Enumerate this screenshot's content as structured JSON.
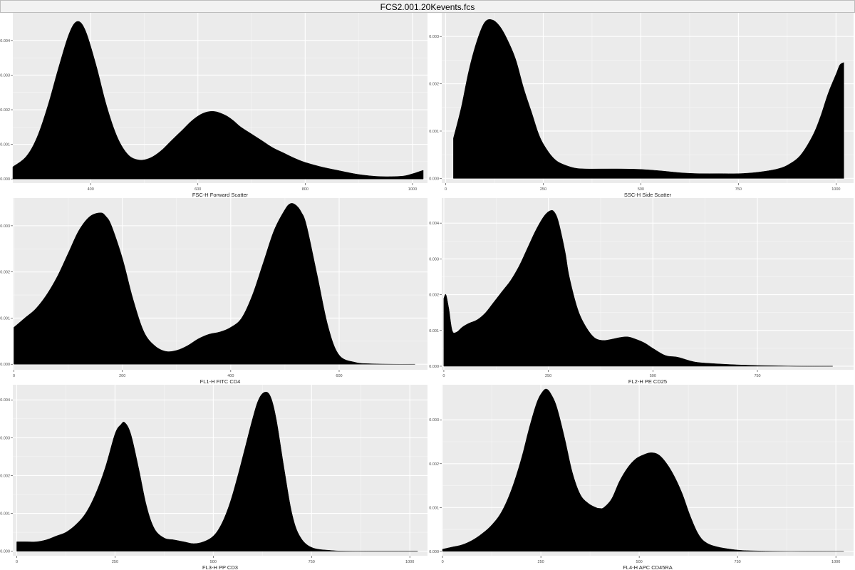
{
  "title": "FCS2.001.20Kevents.fcs",
  "chart_data": [
    {
      "type": "area",
      "xlabel": "FSC-H Forward Scatter",
      "xlim": [
        255,
        1028
      ],
      "ylim": [
        -0.00012,
        0.0048
      ],
      "xticks": [
        400,
        600,
        800,
        1000
      ],
      "xtick_labels": [
        "400",
        "600",
        "800",
        "1000"
      ],
      "yticks": [
        0.0,
        0.001,
        0.002,
        0.003,
        0.004
      ],
      "ytick_labels": [
        "0.000",
        "0.001",
        "0.002",
        "0.003",
        "0.004"
      ],
      "x": [
        255,
        280,
        300,
        320,
        340,
        360,
        375,
        390,
        410,
        430,
        450,
        470,
        490,
        510,
        530,
        550,
        570,
        590,
        610,
        630,
        650,
        665,
        680,
        700,
        720,
        740,
        760,
        780,
        800,
        830,
        860,
        900,
        940,
        980,
        1000,
        1010,
        1020
      ],
      "y": [
        0.00035,
        0.00065,
        0.0012,
        0.0021,
        0.0032,
        0.0042,
        0.00455,
        0.0043,
        0.0033,
        0.0021,
        0.0012,
        0.0007,
        0.00055,
        0.0006,
        0.0008,
        0.0011,
        0.0014,
        0.0017,
        0.0019,
        0.00195,
        0.00185,
        0.0017,
        0.0015,
        0.0013,
        0.0011,
        0.0009,
        0.00075,
        0.0006,
        0.00048,
        0.00035,
        0.00025,
        0.00013,
        7e-05,
        8e-05,
        0.00015,
        0.0002,
        0.00025
      ]
    },
    {
      "type": "area",
      "xlabel": "SSC-H Side Scatter",
      "xlim": [
        -10,
        1045
      ],
      "ylim": [
        -0.0001,
        0.0035
      ],
      "xticks": [
        0,
        250,
        500,
        750,
        1000
      ],
      "xtick_labels": [
        "0",
        "250",
        "500",
        "750",
        "1000"
      ],
      "yticks": [
        0.0,
        0.001,
        0.002,
        0.003
      ],
      "ytick_labels": [
        "0.000",
        "0.001",
        "0.002",
        "0.003"
      ],
      "x": [
        20,
        40,
        60,
        80,
        100,
        120,
        140,
        160,
        180,
        200,
        220,
        240,
        260,
        280,
        300,
        330,
        360,
        400,
        450,
        500,
        550,
        600,
        650,
        700,
        750,
        800,
        850,
        880,
        910,
        940,
        960,
        980,
        1000,
        1010,
        1020
      ],
      "y": [
        0.00085,
        0.0015,
        0.0023,
        0.0029,
        0.0033,
        0.00335,
        0.0032,
        0.0029,
        0.0025,
        0.0019,
        0.0014,
        0.0009,
        0.0006,
        0.0004,
        0.0003,
        0.00022,
        0.0002,
        0.0002,
        0.0002,
        0.00019,
        0.00016,
        0.00012,
        0.0001,
        0.0001,
        0.0001,
        0.00013,
        0.0002,
        0.0003,
        0.0005,
        0.0009,
        0.0013,
        0.0018,
        0.0022,
        0.0024,
        0.00245
      ]
    },
    {
      "type": "area",
      "xlabel": "FL1-H FITC CD4",
      "xlim": [
        -2,
        763
      ],
      "ylim": [
        -0.00012,
        0.0036
      ],
      "xticks": [
        0,
        200,
        400,
        600
      ],
      "xtick_labels": [
        "0",
        "200",
        "400",
        "600"
      ],
      "yticks": [
        0.0,
        0.001,
        0.002,
        0.003
      ],
      "ytick_labels": [
        "0.000",
        "0.001",
        "0.002",
        "0.003"
      ],
      "x": [
        0,
        20,
        40,
        60,
        80,
        100,
        120,
        140,
        160,
        170,
        180,
        200,
        220,
        240,
        260,
        280,
        300,
        320,
        340,
        360,
        380,
        400,
        420,
        440,
        460,
        480,
        500,
        510,
        520,
        530,
        540,
        560,
        580,
        600,
        630,
        660,
        700,
        740
      ],
      "y": [
        0.0008,
        0.001,
        0.0012,
        0.0015,
        0.0019,
        0.0024,
        0.0029,
        0.0032,
        0.00328,
        0.0032,
        0.003,
        0.0023,
        0.0014,
        0.0007,
        0.0004,
        0.00028,
        0.0003,
        0.0004,
        0.00055,
        0.00065,
        0.0007,
        0.0008,
        0.001,
        0.0015,
        0.0022,
        0.0029,
        0.00335,
        0.00348,
        0.00345,
        0.0033,
        0.003,
        0.0019,
        0.0008,
        0.0002,
        4e-05,
        1e-05,
        0.0,
        0.0
      ]
    },
    {
      "type": "area",
      "xlabel": "FL2-H PE CD25",
      "xlim": [
        -5,
        980
      ],
      "ylim": [
        -0.0001,
        0.0047
      ],
      "xticks": [
        0,
        250,
        500,
        750
      ],
      "xtick_labels": [
        "0",
        "250",
        "500",
        "750"
      ],
      "yticks": [
        0.0,
        0.001,
        0.002,
        0.003,
        0.004
      ],
      "ytick_labels": [
        "0.000",
        "0.001",
        "0.002",
        "0.003",
        "0.004"
      ],
      "x": [
        0,
        5,
        12,
        20,
        30,
        45,
        60,
        80,
        100,
        120,
        140,
        160,
        180,
        200,
        220,
        240,
        255,
        265,
        275,
        290,
        300,
        320,
        340,
        360,
        380,
        400,
        420,
        440,
        460,
        480,
        500,
        530,
        560,
        600,
        650,
        700,
        750,
        800,
        850,
        930
      ],
      "y": [
        0.0019,
        0.002,
        0.0016,
        0.001,
        0.00095,
        0.0011,
        0.0012,
        0.0013,
        0.0015,
        0.0018,
        0.0021,
        0.0024,
        0.0028,
        0.0033,
        0.0038,
        0.0042,
        0.00435,
        0.0043,
        0.004,
        0.0032,
        0.0025,
        0.0016,
        0.0011,
        0.0008,
        0.00072,
        0.00075,
        0.0008,
        0.00082,
        0.00075,
        0.00065,
        0.0005,
        0.0003,
        0.00025,
        0.00012,
        7e-05,
        4e-05,
        2e-05,
        1e-05,
        0.0,
        0.0
      ]
    },
    {
      "type": "area",
      "xlabel": "FL3-H PP CD3",
      "xlim": [
        -10,
        1045
      ],
      "ylim": [
        -0.00012,
        0.0044
      ],
      "xticks": [
        0,
        250,
        500,
        750,
        1000
      ],
      "xtick_labels": [
        "0",
        "250",
        "500",
        "750",
        "1000"
      ],
      "yticks": [
        0.0,
        0.001,
        0.002,
        0.003,
        0.004
      ],
      "ytick_labels": [
        "0.000",
        "0.001",
        "0.002",
        "0.003",
        "0.004"
      ],
      "x": [
        0,
        25,
        50,
        75,
        100,
        125,
        150,
        175,
        200,
        225,
        250,
        265,
        275,
        290,
        310,
        330,
        350,
        375,
        400,
        425,
        450,
        475,
        500,
        520,
        540,
        560,
        580,
        600,
        615,
        630,
        645,
        660,
        680,
        700,
        720,
        750,
        800,
        850,
        900,
        1020
      ],
      "y": [
        0.00025,
        0.00025,
        0.00025,
        0.0003,
        0.0004,
        0.0005,
        0.0007,
        0.001,
        0.0015,
        0.0022,
        0.0031,
        0.00335,
        0.0034,
        0.0031,
        0.0022,
        0.0012,
        0.0006,
        0.00035,
        0.0003,
        0.00025,
        0.0002,
        0.00025,
        0.0004,
        0.0007,
        0.0012,
        0.0019,
        0.0027,
        0.0035,
        0.004,
        0.0042,
        0.0041,
        0.0035,
        0.0022,
        0.001,
        0.0004,
        0.0001,
        2e-05,
        0.0,
        0.0,
        0.0
      ]
    },
    {
      "type": "area",
      "xlabel": "FL4-H APC CD45RA",
      "xlim": [
        -2,
        1045
      ],
      "ylim": [
        -0.0001,
        0.0038
      ],
      "xticks": [
        0,
        250,
        500,
        750,
        1000
      ],
      "xtick_labels": [
        "0",
        "250",
        "500",
        "750",
        "1000"
      ],
      "yticks": [
        0.0,
        0.001,
        0.002,
        0.003
      ],
      "ytick_labels": [
        "0.000",
        "0.001",
        "0.002",
        "0.003"
      ],
      "x": [
        0,
        25,
        50,
        75,
        100,
        125,
        150,
        175,
        200,
        220,
        240,
        255,
        265,
        275,
        290,
        310,
        330,
        350,
        370,
        390,
        400,
        410,
        430,
        450,
        470,
        490,
        510,
        530,
        550,
        570,
        590,
        610,
        630,
        650,
        670,
        700,
        750,
        800,
        900,
        1020
      ],
      "y": [
        5e-05,
        0.0001,
        0.00015,
        0.00025,
        0.0004,
        0.0006,
        0.0009,
        0.0014,
        0.0021,
        0.0028,
        0.0034,
        0.00365,
        0.0037,
        0.0036,
        0.0033,
        0.0026,
        0.0018,
        0.0013,
        0.0011,
        0.001,
        0.00098,
        0.001,
        0.0012,
        0.0016,
        0.0019,
        0.0021,
        0.0022,
        0.00225,
        0.0022,
        0.002,
        0.0017,
        0.0013,
        0.0008,
        0.0004,
        0.0002,
        0.0001,
        3e-05,
        1e-05,
        0.0,
        0.0
      ]
    }
  ]
}
